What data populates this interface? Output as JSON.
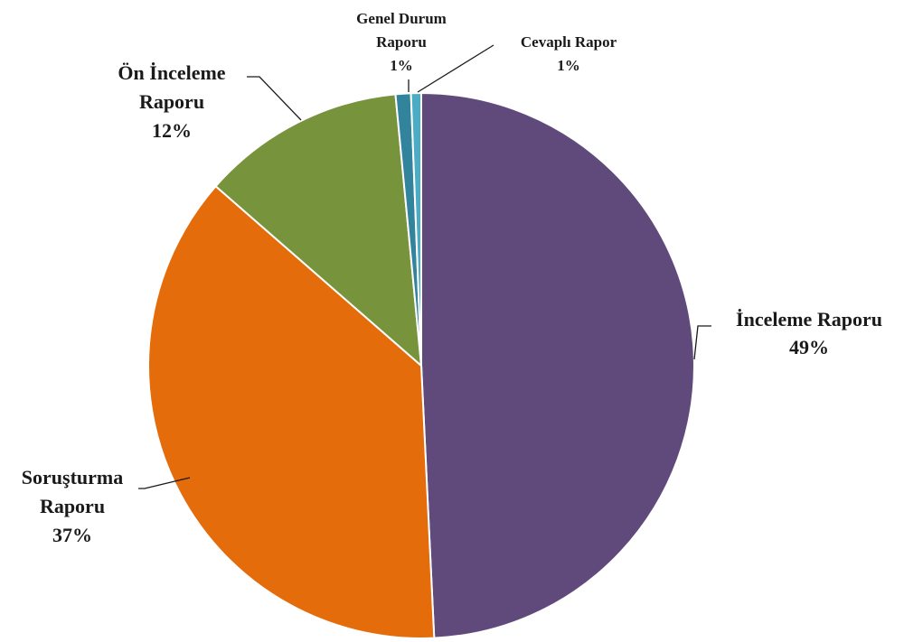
{
  "chart_data": {
    "type": "pie",
    "title": "",
    "slices": [
      {
        "label_lines": [
          "İnceleme Raporu"
        ],
        "percent_label": "49%",
        "value": 49,
        "color": "#604a7b"
      },
      {
        "label_lines": [
          "Soruşturma",
          "Raporu"
        ],
        "percent_label": "37%",
        "value": 37,
        "color": "#e46c0a"
      },
      {
        "label_lines": [
          "Ön İnceleme",
          "Raporu"
        ],
        "percent_label": "12%",
        "value": 12,
        "color": "#77933c"
      },
      {
        "label_lines": [
          "Genel Durum",
          "Raporu"
        ],
        "percent_label": "1%",
        "value": 0.9,
        "color": "#31849b"
      },
      {
        "label_lines": [
          "Cevaplı Rapor"
        ],
        "percent_label": "1%",
        "value": 0.6,
        "color": "#4bacc6"
      }
    ]
  }
}
